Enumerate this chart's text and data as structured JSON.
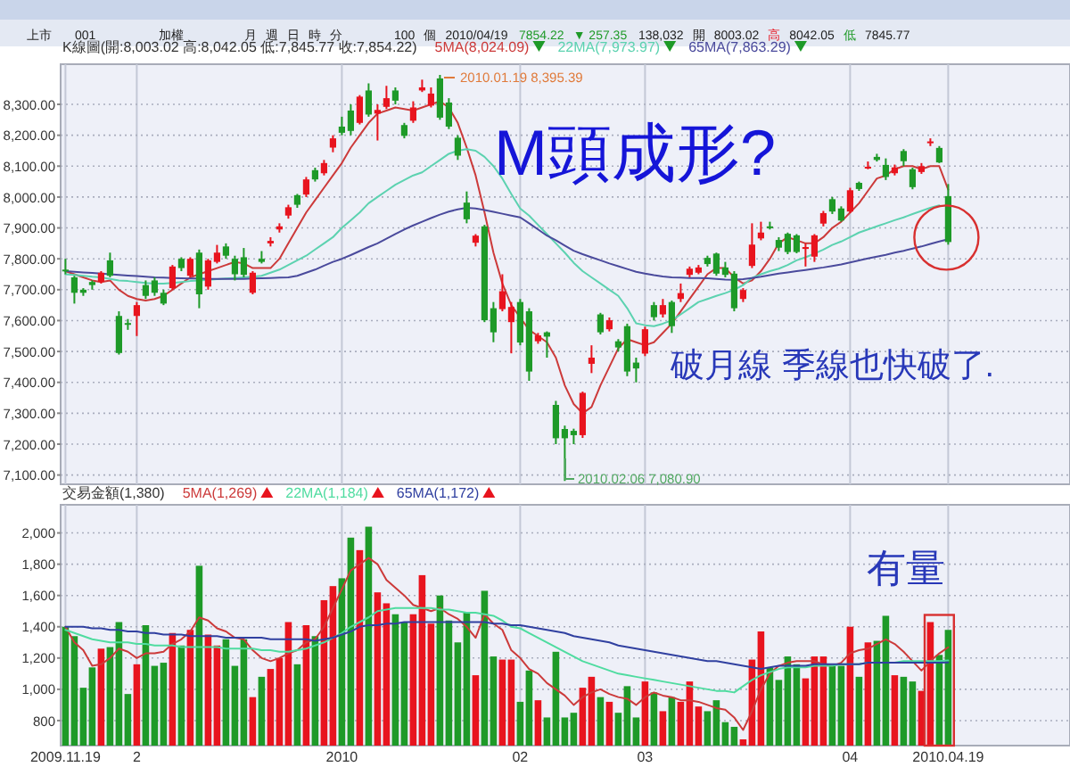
{
  "chart_data": [
    {
      "type": "other",
      "annotations": [
        "上市",
        "001",
        "加權",
        "月",
        "週",
        "日",
        "時",
        "分",
        "100",
        "個",
        "2010/04/19",
        "7854.22",
        "▼ 257.35",
        "138,032",
        "開",
        "8003.02",
        "高",
        "8042.05",
        "低",
        "7845.77"
      ]
    },
    {
      "type": "candlestick",
      "tick_labels": "y",
      "grid": true,
      "legend": "top",
      "ylim": [
        7070,
        8430
      ],
      "yticks": [
        {
          "value": 7100,
          "label": "7,100.00"
        },
        {
          "value": 7200,
          "label": "7,200.00"
        },
        {
          "value": 7300,
          "label": "7,300.00"
        },
        {
          "value": 7400,
          "label": "7,400.00"
        },
        {
          "value": 7500,
          "label": "7,500.00"
        },
        {
          "value": 7600,
          "label": "7,600.00"
        },
        {
          "value": 7700,
          "label": "7,700.00"
        },
        {
          "value": 7800,
          "label": "7,800.00"
        },
        {
          "value": 7900,
          "label": "7,900.00"
        },
        {
          "value": 8000,
          "label": "8,000.00"
        },
        {
          "value": 8100,
          "label": "8,100.00"
        },
        {
          "value": 8200,
          "label": "8,200.00"
        },
        {
          "value": 8300,
          "label": "8,300.00"
        }
      ],
      "categories": [
        "2009.11.19",
        null,
        null,
        null,
        null,
        null,
        null,
        null,
        "2",
        null,
        null,
        null,
        null,
        null,
        null,
        null,
        null,
        null,
        null,
        null,
        null,
        null,
        null,
        null,
        null,
        null,
        null,
        null,
        null,
        null,
        null,
        "2010",
        null,
        null,
        null,
        null,
        null,
        null,
        null,
        null,
        null,
        null,
        null,
        null,
        null,
        null,
        null,
        null,
        null,
        null,
        null,
        "02",
        null,
        null,
        null,
        null,
        null,
        null,
        null,
        null,
        null,
        null,
        null,
        null,
        null,
        "03",
        null,
        null,
        null,
        null,
        null,
        null,
        null,
        null,
        null,
        null,
        null,
        null,
        null,
        null,
        null,
        null,
        null,
        null,
        null,
        null,
        null,
        null,
        "04",
        null,
        null,
        null,
        null,
        null,
        null,
        null,
        null,
        null,
        null,
        "2010.04.19"
      ],
      "ohlc": [
        [
          7765,
          7800,
          7750,
          7760
        ],
        [
          7740,
          7745,
          7655,
          7690
        ],
        [
          7700,
          7705,
          7680,
          7690
        ],
        [
          7725,
          7730,
          7700,
          7715
        ],
        [
          7725,
          7760,
          7720,
          7755
        ],
        [
          7795,
          7820,
          7740,
          7745
        ],
        [
          7615,
          7630,
          7490,
          7495
        ],
        [
          7592,
          7605,
          7570,
          7588
        ],
        [
          7615,
          7660,
          7550,
          7650
        ],
        [
          7715,
          7730,
          7670,
          7680
        ],
        [
          7730,
          7740,
          7680,
          7690
        ],
        [
          7690,
          7700,
          7650,
          7655
        ],
        [
          7705,
          7780,
          7700,
          7775
        ],
        [
          7800,
          7805,
          7760,
          7770
        ],
        [
          7745,
          7805,
          7740,
          7800
        ],
        [
          7820,
          7830,
          7640,
          7685
        ],
        [
          7710,
          7800,
          7700,
          7795
        ],
        [
          7790,
          7845,
          7785,
          7820
        ],
        [
          7840,
          7850,
          7800,
          7810
        ],
        [
          7800,
          7810,
          7730,
          7750
        ],
        [
          7805,
          7835,
          7740,
          7748
        ],
        [
          7690,
          7760,
          7685,
          7755
        ],
        [
          7800,
          7825,
          7785,
          7790
        ],
        [
          7850,
          7870,
          7840,
          7858
        ],
        [
          7895,
          7915,
          7885,
          7905
        ],
        [
          7940,
          7975,
          7930,
          7967
        ],
        [
          8006,
          8010,
          7965,
          7975
        ],
        [
          8008,
          8065,
          8000,
          8057
        ],
        [
          8087,
          8095,
          8050,
          8057
        ],
        [
          8077,
          8120,
          8070,
          8110
        ],
        [
          8160,
          8200,
          8145,
          8190
        ],
        [
          8228,
          8260,
          8200,
          8208
        ],
        [
          8280,
          8300,
          8200,
          8214
        ],
        [
          8240,
          8330,
          8235,
          8325
        ],
        [
          8345,
          8368,
          8260,
          8267
        ],
        [
          8270,
          8300,
          8183,
          8282
        ],
        [
          8292,
          8360,
          8285,
          8320
        ],
        [
          8345,
          8355,
          8300,
          8312
        ],
        [
          8233,
          8240,
          8190,
          8198
        ],
        [
          8247,
          8310,
          8240,
          8290
        ],
        [
          8345,
          8380,
          8340,
          8355
        ],
        [
          8296,
          8355,
          8290,
          8335
        ],
        [
          8384,
          8395.39,
          8250,
          8257
        ],
        [
          8306,
          8320,
          8220,
          8228
        ],
        [
          8192,
          8200,
          8120,
          8134
        ],
        [
          7982,
          8018,
          7915,
          7928
        ],
        [
          7852,
          7880,
          7840,
          7875
        ],
        [
          7905,
          7910,
          7595,
          7601
        ],
        [
          7640,
          7660,
          7530,
          7562
        ],
        [
          7637,
          7750,
          7630,
          7695
        ],
        [
          7595,
          7660,
          7494,
          7644
        ],
        [
          7660,
          7670,
          7520,
          7529
        ],
        [
          7630,
          7640,
          7405,
          7435
        ],
        [
          7533,
          7560,
          7525,
          7552
        ],
        [
          7562,
          7565,
          7480,
          7548
        ],
        [
          7327,
          7340,
          7200,
          7219
        ],
        [
          7249,
          7260,
          7080.9,
          7219
        ],
        [
          7243,
          7250,
          7200,
          7229
        ],
        [
          7229,
          7370,
          7220,
          7366
        ],
        [
          7460,
          7520,
          7430,
          7480
        ],
        [
          7620,
          7625,
          7555,
          7562
        ],
        [
          7572,
          7610,
          7565,
          7601
        ],
        [
          7533,
          7540,
          7500,
          7513
        ],
        [
          7582,
          7590,
          7420,
          7435
        ],
        [
          7464,
          7480,
          7400,
          7445
        ],
        [
          7493,
          7580,
          7485,
          7572
        ],
        [
          7650,
          7660,
          7600,
          7611
        ],
        [
          7620,
          7670,
          7610,
          7650
        ],
        [
          7660,
          7665,
          7560,
          7582
        ],
        [
          7670,
          7720,
          7660,
          7689
        ],
        [
          7748,
          7775,
          7740,
          7768
        ],
        [
          7755,
          7780,
          7750,
          7772
        ],
        [
          7803,
          7810,
          7775,
          7783
        ],
        [
          7817,
          7820,
          7745,
          7752
        ],
        [
          7772,
          7790,
          7740,
          7748
        ],
        [
          7752,
          7760,
          7630,
          7640
        ],
        [
          7670,
          7705,
          7660,
          7699
        ],
        [
          7777,
          7915,
          7770,
          7846
        ],
        [
          7866,
          7920,
          7860,
          7885
        ],
        [
          7905,
          7920,
          7895,
          7900
        ],
        [
          7861,
          7870,
          7825,
          7836
        ],
        [
          7881,
          7885,
          7815,
          7822
        ],
        [
          7876,
          7880,
          7818,
          7822
        ],
        [
          7832,
          7850,
          7775,
          7838
        ],
        [
          7807,
          7880,
          7790,
          7876
        ],
        [
          7914,
          7955,
          7905,
          7948
        ],
        [
          7993,
          8000,
          7945,
          7953
        ],
        [
          7963,
          7970,
          7920,
          7924
        ],
        [
          7953,
          8030,
          7948,
          8022
        ],
        [
          8046,
          8050,
          8020,
          8026
        ],
        [
          8094,
          8115,
          8090,
          8098
        ],
        [
          8130,
          8140,
          8115,
          8120
        ],
        [
          8104,
          8125,
          8055,
          8065
        ],
        [
          8077,
          8105,
          8070,
          8096
        ],
        [
          8149,
          8155,
          8100,
          8116
        ],
        [
          8090,
          8095,
          8025,
          8032
        ],
        [
          8081,
          8110,
          8075,
          8100
        ],
        [
          8175,
          8190,
          8165,
          8180
        ],
        [
          8159,
          8165,
          8110,
          8112
        ],
        [
          8003.02,
          8042.05,
          7845.77,
          7854.22
        ]
      ],
      "colors": [
        "#1e9a28",
        "#1e9a28",
        "#1e9a28",
        "#1e9a28",
        "#e8141e",
        "#1e9a28",
        "#1e9a28",
        "#1e9a28",
        "#e8141e",
        "#1e9a28",
        "#1e9a28",
        "#1e9a28",
        "#e8141e",
        "#1e9a28",
        "#e8141e",
        "#1e9a28",
        "#e8141e",
        "#e8141e",
        "#1e9a28",
        "#1e9a28",
        "#1e9a28",
        "#e8141e",
        "#1e9a28",
        "#e8141e",
        "#e8141e",
        "#e8141e",
        "#1e9a28",
        "#e8141e",
        "#1e9a28",
        "#e8141e",
        "#e8141e",
        "#1e9a28",
        "#1e9a28",
        "#e8141e",
        "#1e9a28",
        "#e8141e",
        "#e8141e",
        "#1e9a28",
        "#1e9a28",
        "#e8141e",
        "#e8141e",
        "#e8141e",
        "#1e9a28",
        "#1e9a28",
        "#1e9a28",
        "#1e9a28",
        "#e8141e",
        "#1e9a28",
        "#1e9a28",
        "#e8141e",
        "#e8141e",
        "#1e9a28",
        "#1e9a28",
        "#e8141e",
        "#1e9a28",
        "#1e9a28",
        "#1e9a28",
        "#1e9a28",
        "#e8141e",
        "#e8141e",
        "#1e9a28",
        "#e8141e",
        "#1e9a28",
        "#1e9a28",
        "#1e9a28",
        "#e8141e",
        "#1e9a28",
        "#e8141e",
        "#1e9a28",
        "#e8141e",
        "#e8141e",
        "#e8141e",
        "#1e9a28",
        "#1e9a28",
        "#1e9a28",
        "#1e9a28",
        "#e8141e",
        "#e8141e",
        "#e8141e",
        "#1e9a28",
        "#1e9a28",
        "#1e9a28",
        "#1e9a28",
        "#e8141e",
        "#e8141e",
        "#e8141e",
        "#1e9a28",
        "#1e9a28",
        "#e8141e",
        "#1e9a28",
        "#e8141e",
        "#1e9a28",
        "#1e9a28",
        "#e8141e",
        "#1e9a28",
        "#1e9a28",
        "#e8141e",
        "#e8141e",
        "#1e9a28",
        "#1e9a28"
      ],
      "series": [
        {
          "type": "line",
          "name": "5MA(8,024.09)",
          "color": "#cc3a3a",
          "values": [
            7760,
            7750,
            7740,
            7730,
            7725,
            7730,
            7700,
            7680,
            7670,
            7665,
            7670,
            7680,
            7700,
            7720,
            7740,
            7750,
            7760,
            7770,
            7780,
            7790,
            7785,
            7770,
            7770,
            7770,
            7800,
            7850,
            7900,
            7950,
            7990,
            8030,
            8070,
            8110,
            8160,
            8200,
            8240,
            8270,
            8280,
            8290,
            8285,
            8280,
            8290,
            8300,
            8310,
            8290,
            8240,
            8160,
            8070,
            7950,
            7820,
            7720,
            7650,
            7610,
            7570,
            7550,
            7530,
            7480,
            7390,
            7330,
            7300,
            7320,
            7390,
            7450,
            7510,
            7540,
            7530,
            7520,
            7530,
            7560,
            7590,
            7630,
            7670,
            7710,
            7750,
            7770,
            7770,
            7740,
            7720,
            7730,
            7760,
            7800,
            7850,
            7870,
            7860,
            7850,
            7850,
            7870,
            7900,
            7920,
            7950,
            7980,
            8020,
            8060,
            8070,
            8090,
            8100,
            8100,
            8090,
            8100,
            8100,
            8024.09
          ]
        },
        {
          "type": "line",
          "name": "22MA(7,973.97)",
          "color": "#5cd2b0",
          "values": [
            7750,
            7748,
            7745,
            7742,
            7740,
            7735,
            7730,
            7728,
            7725,
            7722,
            7720,
            7720,
            7722,
            7725,
            7728,
            7730,
            7732,
            7734,
            7736,
            7738,
            7740,
            7742,
            7745,
            7755,
            7765,
            7780,
            7795,
            7810,
            7830,
            7850,
            7870,
            7900,
            7925,
            7950,
            7980,
            8000,
            8020,
            8040,
            8055,
            8070,
            8080,
            8100,
            8120,
            8140,
            8150,
            8155,
            8150,
            8130,
            8100,
            8060,
            8010,
            7963,
            7940,
            7910,
            7880,
            7850,
            7820,
            7787,
            7760,
            7740,
            7720,
            7700,
            7680,
            7640,
            7591,
            7585,
            7582,
            7590,
            7601,
            7620,
            7640,
            7660,
            7670,
            7680,
            7689,
            7700,
            7715,
            7738,
            7750,
            7760,
            7768,
            7780,
            7795,
            7805,
            7817,
            7830,
            7845,
            7856,
            7870,
            7885,
            7895,
            7905,
            7915,
            7925,
            7934,
            7945,
            7955,
            7965,
            7973,
            null
          ]
        },
        {
          "type": "line",
          "name": "65MA(7,863.29)",
          "color": "#4a4a9c",
          "values": [
            7760,
            7758,
            7756,
            7754,
            7752,
            7750,
            7748,
            7746,
            7744,
            7742,
            7740,
            7739,
            7738,
            7737,
            7736,
            7736,
            7735,
            7735,
            7735,
            7735,
            7735,
            7736,
            7737,
            7738,
            7739,
            7740,
            7745,
            7755,
            7765,
            7778,
            7790,
            7800,
            7812,
            7825,
            7838,
            7850,
            7865,
            7880,
            7895,
            7908,
            7920,
            7932,
            7943,
            7953,
            7960,
            7965,
            7963,
            7958,
            7952,
            7946,
            7940,
            7934,
            7915,
            7895,
            7875,
            7860,
            7843,
            7826,
            7815,
            7805,
            7795,
            7785,
            7776,
            7767,
            7758,
            7752,
            7747,
            7743,
            7740,
            7739,
            7738,
            7738,
            7737,
            7735,
            7733,
            7732,
            7734,
            7738,
            7742,
            7747,
            7752,
            7756,
            7760,
            7764,
            7768,
            7772,
            7777,
            7782,
            7788,
            7795,
            7801,
            7807,
            7813,
            7820,
            7826,
            7833,
            7840,
            7848,
            7856,
            7863.29
          ]
        }
      ],
      "annotations": [
        "K線圖(開:8,003.02 高:8,042.05 低:7,845.77 收:7,854.22)",
        "M頭成形?",
        "破月線 季線也快破了.",
        "2010.01.19  8,395.39",
        "2010.02.06  7,080.90"
      ]
    },
    {
      "type": "bar",
      "grid": true,
      "legend": "top left",
      "ylim": [
        640,
        2180
      ],
      "yticks": [
        800,
        {
          "value": 1000,
          "label": "1,000"
        },
        {
          "value": 1200,
          "label": "1,200"
        },
        {
          "value": 1400,
          "label": "1,400"
        },
        {
          "value": 1600,
          "label": "1,600"
        },
        {
          "value": 1800,
          "label": "1,800"
        },
        {
          "value": 2000,
          "label": "2,000"
        }
      ],
      "categories": [
        "2009.11.19",
        null,
        null,
        null,
        null,
        null,
        null,
        null,
        "2",
        null,
        null,
        null,
        null,
        null,
        null,
        null,
        null,
        null,
        null,
        null,
        null,
        null,
        null,
        null,
        null,
        null,
        null,
        null,
        null,
        null,
        null,
        "2010",
        null,
        null,
        null,
        null,
        null,
        null,
        null,
        null,
        null,
        null,
        null,
        null,
        null,
        null,
        null,
        null,
        null,
        null,
        null,
        "02",
        null,
        null,
        null,
        null,
        null,
        null,
        null,
        null,
        null,
        null,
        null,
        null,
        null,
        "03",
        null,
        null,
        null,
        null,
        null,
        null,
        null,
        null,
        null,
        null,
        null,
        null,
        null,
        null,
        null,
        null,
        null,
        null,
        null,
        null,
        null,
        null,
        "04",
        null,
        null,
        null,
        null,
        null,
        null,
        null,
        null,
        null,
        null,
        "2010.04.19"
      ],
      "values": [
        1400,
        1340,
        1010,
        1140,
        1260,
        1270,
        1430,
        970,
        1160,
        1410,
        1150,
        1170,
        1360,
        1280,
        1380,
        1790,
        1350,
        1280,
        1320,
        1150,
        1320,
        950,
        1080,
        1130,
        1200,
        1430,
        1160,
        1410,
        1340,
        1570,
        1660,
        1710,
        1970,
        1890,
        2040,
        1620,
        1550,
        1480,
        1430,
        1480,
        1730,
        1420,
        1600,
        1440,
        1300,
        1490,
        1090,
        1630,
        1210,
        1190,
        1190,
        920,
        1120,
        930,
        820,
        1240,
        820,
        850,
        1010,
        1080,
        950,
        920,
        850,
        1020,
        820,
        1050,
        980,
        860,
        950,
        920,
        1050,
        890,
        860,
        930,
        790,
        760,
        680,
        1190,
        1370,
        1140,
        1060,
        1210,
        1160,
        1070,
        1210,
        1210,
        1150,
        1150,
        1400,
        1080,
        1300,
        1310,
        1470,
        1090,
        1080,
        1050,
        990,
        1430,
        1220,
        1380
      ],
      "colors": [
        "#1e9a28",
        "#1e9a28",
        "#1e9a28",
        "#1e9a28",
        "#e8141e",
        "#1e9a28",
        "#1e9a28",
        "#1e9a28",
        "#e8141e",
        "#1e9a28",
        "#1e9a28",
        "#1e9a28",
        "#e8141e",
        "#1e9a28",
        "#e8141e",
        "#1e9a28",
        "#e8141e",
        "#e8141e",
        "#1e9a28",
        "#1e9a28",
        "#1e9a28",
        "#e8141e",
        "#1e9a28",
        "#e8141e",
        "#e8141e",
        "#e8141e",
        "#1e9a28",
        "#e8141e",
        "#1e9a28",
        "#e8141e",
        "#e8141e",
        "#1e9a28",
        "#1e9a28",
        "#e8141e",
        "#1e9a28",
        "#e8141e",
        "#e8141e",
        "#1e9a28",
        "#1e9a28",
        "#e8141e",
        "#e8141e",
        "#e8141e",
        "#1e9a28",
        "#1e9a28",
        "#1e9a28",
        "#1e9a28",
        "#e8141e",
        "#1e9a28",
        "#1e9a28",
        "#e8141e",
        "#e8141e",
        "#1e9a28",
        "#1e9a28",
        "#e8141e",
        "#1e9a28",
        "#1e9a28",
        "#1e9a28",
        "#1e9a28",
        "#e8141e",
        "#e8141e",
        "#1e9a28",
        "#e8141e",
        "#1e9a28",
        "#1e9a28",
        "#1e9a28",
        "#e8141e",
        "#1e9a28",
        "#e8141e",
        "#1e9a28",
        "#e8141e",
        "#e8141e",
        "#e8141e",
        "#1e9a28",
        "#1e9a28",
        "#1e9a28",
        "#1e9a28",
        "#e8141e",
        "#e8141e",
        "#e8141e",
        "#1e9a28",
        "#1e9a28",
        "#1e9a28",
        "#1e9a28",
        "#e8141e",
        "#e8141e",
        "#e8141e",
        "#1e9a28",
        "#1e9a28",
        "#e8141e",
        "#1e9a28",
        "#e8141e",
        "#1e9a28",
        "#1e9a28",
        "#e8141e",
        "#1e9a28",
        "#1e9a28",
        "#e8141e",
        "#e8141e",
        "#1e9a28",
        "#1e9a28"
      ],
      "series": [
        {
          "type": "line",
          "name": "5MA(1,269)",
          "color": "#cc3a3a",
          "values": [
            1400,
            1300,
            1250,
            1150,
            1160,
            1200,
            1260,
            1240,
            1200,
            1230,
            1230,
            1240,
            1290,
            1320,
            1370,
            1460,
            1440,
            1390,
            1370,
            1330,
            1320,
            1250,
            1200,
            1180,
            1200,
            1230,
            1250,
            1300,
            1320,
            1400,
            1520,
            1640,
            1760,
            1800,
            1840,
            1800,
            1700,
            1650,
            1600,
            1540,
            1520,
            1500,
            1520,
            1480,
            1450,
            1400,
            1330,
            1480,
            1420,
            1380,
            1250,
            1200,
            1130,
            1100,
            1040,
            1000,
            960,
            900,
            950,
            980,
            1000,
            970,
            950,
            940,
            900,
            950,
            980,
            960,
            950,
            930,
            930,
            920,
            900,
            880,
            870,
            820,
            740,
            860,
            1000,
            1100,
            1150,
            1170,
            1180,
            1180,
            1180,
            1160,
            1150,
            1170,
            1230,
            1250,
            1260,
            1290,
            1320,
            1290,
            1240,
            1180,
            1120,
            1180,
            1230,
            1269
          ]
        },
        {
          "type": "line",
          "name": "22MA(1,184)",
          "color": "#4fdca0",
          "values": [
            1380,
            1360,
            1340,
            1320,
            1310,
            1300,
            1300,
            1300,
            1290,
            1290,
            1280,
            1280,
            1280,
            1270,
            1270,
            1270,
            1270,
            1270,
            1260,
            1260,
            1260,
            1260,
            1250,
            1250,
            1240,
            1240,
            1250,
            1260,
            1280,
            1300,
            1330,
            1360,
            1400,
            1430,
            1460,
            1500,
            1510,
            1520,
            1520,
            1520,
            1520,
            1520,
            1510,
            1510,
            1500,
            1490,
            1490,
            1480,
            1470,
            1440,
            1400,
            1390,
            1360,
            1330,
            1300,
            1270,
            1240,
            1210,
            1180,
            1160,
            1140,
            1120,
            1100,
            1090,
            1080,
            1070,
            1060,
            1050,
            1040,
            1030,
            1020,
            1010,
            1000,
            990,
            990,
            980,
            1020,
            1060,
            1090,
            1110,
            1130,
            1140,
            1140,
            1140,
            1150,
            1150,
            1150,
            1160,
            1160,
            1160,
            1170,
            1170,
            1170,
            1170,
            1180,
            1180,
            1180,
            1180,
            1180,
            1184
          ]
        },
        {
          "type": "line",
          "name": "65MA(1,172)",
          "color": "#3040a0",
          "values": [
            1400,
            1400,
            1400,
            1390,
            1390,
            1380,
            1380,
            1370,
            1370,
            1360,
            1360,
            1350,
            1350,
            1350,
            1340,
            1340,
            1340,
            1340,
            1330,
            1330,
            1330,
            1330,
            1330,
            1320,
            1320,
            1320,
            1320,
            1320,
            1310,
            1320,
            1330,
            1350,
            1370,
            1400,
            1410,
            1410,
            1420,
            1420,
            1430,
            1430,
            1430,
            1430,
            1430,
            1430,
            1430,
            1430,
            1430,
            1430,
            1420,
            1420,
            1410,
            1410,
            1400,
            1390,
            1380,
            1370,
            1360,
            1340,
            1330,
            1320,
            1310,
            1300,
            1280,
            1270,
            1260,
            1250,
            1240,
            1230,
            1220,
            1210,
            1200,
            1190,
            1180,
            1180,
            1170,
            1160,
            1150,
            1140,
            1130,
            1140,
            1150,
            1150,
            1150,
            1150,
            1160,
            1160,
            1160,
            1160,
            1160,
            1160,
            1170,
            1170,
            1170,
            1170,
            1170,
            1170,
            1170,
            1170,
            1170,
            1172
          ]
        }
      ],
      "annotations": [
        "交易金額(1,380)",
        "有量"
      ]
    }
  ]
}
